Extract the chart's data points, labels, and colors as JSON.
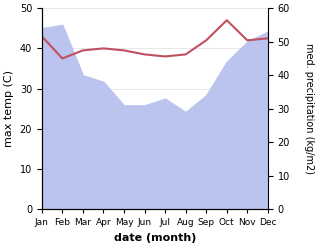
{
  "months": [
    "Jan",
    "Feb",
    "Mar",
    "Apr",
    "May",
    "Jun",
    "Jul",
    "Aug",
    "Sep",
    "Oct",
    "Nov",
    "Dec"
  ],
  "temp": [
    43,
    37.5,
    39.5,
    40,
    39.5,
    38.5,
    38,
    38.5,
    42,
    47,
    42,
    42.5
  ],
  "precip": [
    54,
    55,
    40,
    38,
    31,
    31,
    33,
    29,
    34,
    44,
    50,
    53
  ],
  "ylabel_left": "max temp (C)",
  "ylabel_right": "med. precipitation (kg/m2)",
  "xlabel": "date (month)",
  "temp_color": "#c05060",
  "precip_fill_color": "#bbc4ee",
  "ylim_left": [
    0,
    50
  ],
  "ylim_right": [
    0,
    60
  ],
  "bg_color": "#ffffff"
}
